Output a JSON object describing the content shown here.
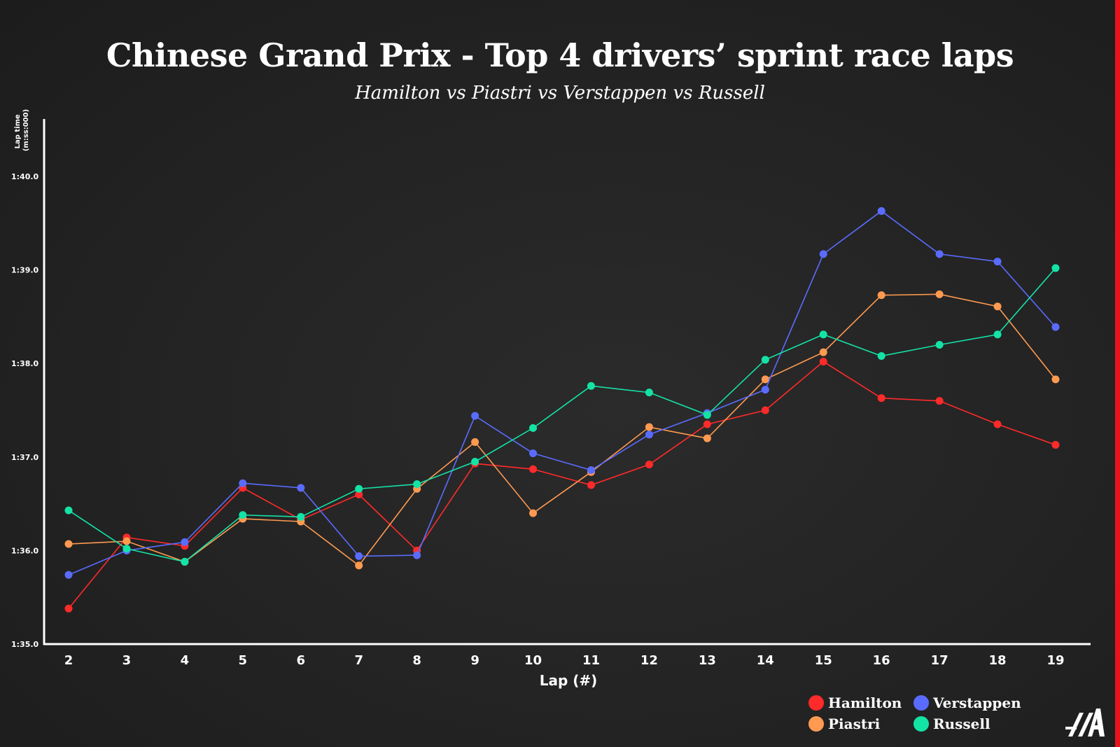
{
  "title": "Chinese Grand Prix - Top 4 drivers’ sprint race laps",
  "subtitle": "Hamilton vs Piastri vs Verstappen vs Russell",
  "colors": {
    "background": "#222222",
    "accent": "#e8141c",
    "hamilton": "#ff2a2a",
    "piastri": "#ff9a50",
    "verstappen": "#5a6cff",
    "russell": "#14e3a6"
  },
  "logo_icon": "the-athletic-logo-icon",
  "chart_data": {
    "type": "line",
    "title": "Chinese Grand Prix - Top 4 drivers’ sprint race laps",
    "subtitle": "Hamilton vs Piastri vs Verstappen vs Russell",
    "xlabel": "Lap (#)",
    "ylabel": "Lap time (m:ss:000)",
    "x": [
      2,
      3,
      4,
      5,
      6,
      7,
      8,
      9,
      10,
      11,
      12,
      13,
      14,
      15,
      16,
      17,
      18,
      19
    ],
    "y_unit": "seconds",
    "ylim": [
      95.0,
      100.0
    ],
    "y_ticks": [
      95.0,
      96.0,
      97.0,
      98.0,
      99.0,
      100.0
    ],
    "y_tick_labels": [
      "1:35.0",
      "1:36.0",
      "1:37.0",
      "1:38.0",
      "1:39.0",
      "1:40.0"
    ],
    "grid": false,
    "legend_position": "bottom-right",
    "series": [
      {
        "name": "Hamilton",
        "color": "#ff2a2a",
        "values": [
          95.38,
          96.14,
          96.05,
          96.67,
          96.33,
          96.6,
          96.0,
          96.93,
          96.87,
          96.7,
          96.92,
          97.35,
          97.5,
          98.02,
          97.63,
          97.6,
          97.35,
          97.13
        ]
      },
      {
        "name": "Piastri",
        "color": "#ff9a50",
        "values": [
          96.07,
          96.1,
          95.88,
          96.34,
          96.31,
          95.84,
          96.66,
          97.16,
          96.4,
          96.84,
          97.32,
          97.2,
          97.83,
          98.12,
          98.73,
          98.74,
          98.61,
          97.83
        ]
      },
      {
        "name": "Verstappen",
        "color": "#5a6cff",
        "values": [
          95.74,
          96.0,
          96.09,
          96.72,
          96.67,
          95.94,
          95.95,
          97.44,
          97.04,
          96.86,
          97.24,
          97.47,
          97.72,
          99.17,
          99.63,
          99.17,
          99.09,
          98.39
        ]
      },
      {
        "name": "Russell",
        "color": "#14e3a6",
        "values": [
          96.43,
          96.02,
          95.88,
          96.38,
          96.36,
          96.66,
          96.71,
          96.95,
          97.31,
          97.76,
          97.69,
          97.45,
          98.04,
          98.31,
          98.08,
          98.2,
          98.31,
          99.02
        ]
      }
    ]
  }
}
